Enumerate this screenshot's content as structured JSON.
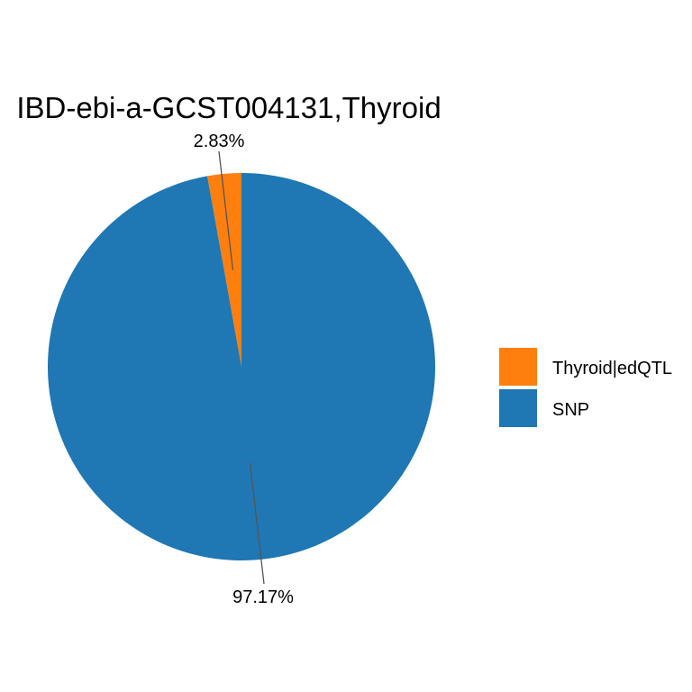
{
  "chart_data": {
    "type": "pie",
    "title": "IBD-ebi-a-GCST004131,Thyroid",
    "slices": [
      {
        "name": "Thyroid|edQTL",
        "value": 2.83,
        "label": "2.83%",
        "color": "#FF7F0E"
      },
      {
        "name": "SNP",
        "value": 97.17,
        "label": "97.17%",
        "color": "#1F77B4"
      }
    ],
    "legend": {
      "position": "right",
      "entries": [
        "Thyroid|edQTL",
        "SNP"
      ]
    }
  }
}
